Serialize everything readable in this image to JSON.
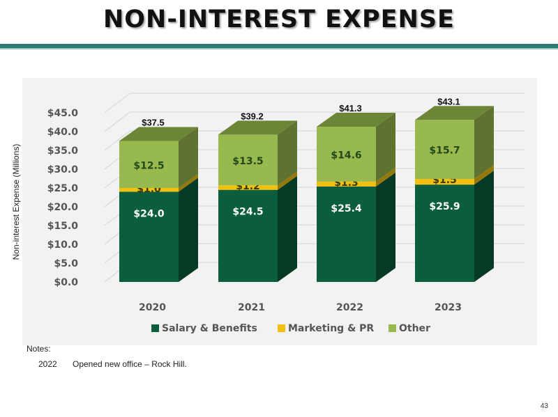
{
  "title": "NON-INTEREST EXPENSE",
  "notes": {
    "label": "Notes:",
    "items": [
      {
        "year": "2022",
        "text": "Opened new office – Rock Hill."
      }
    ]
  },
  "page_number": "43",
  "colors": {
    "salary": "#0b5e3c",
    "marketing": "#f2c10f",
    "other": "#97b94d",
    "rule": "#2a7a70"
  },
  "chart_data": {
    "type": "bar",
    "stacked": true,
    "ylabel": "Non-interest Expense (Millions)",
    "xlabel": "",
    "ylim": [
      0,
      45
    ],
    "yticks": [
      "$0.0",
      "$5.0",
      "$10.0",
      "$15.0",
      "$20.0",
      "$25.0",
      "$30.0",
      "$35.0",
      "$40.0",
      "$45.0"
    ],
    "categories": [
      "2020",
      "2021",
      "2022",
      "2023"
    ],
    "series": [
      {
        "name": "Salary & Benefits",
        "values": [
          24.0,
          24.5,
          25.4,
          25.9
        ],
        "labels": [
          "$24.0",
          "$24.5",
          "$25.4",
          "$25.9"
        ]
      },
      {
        "name": "Marketing & PR",
        "values": [
          1.0,
          1.2,
          1.3,
          1.5
        ],
        "labels": [
          "$1.0",
          "$1.2",
          "$1.3",
          "$1.5"
        ]
      },
      {
        "name": "Other",
        "values": [
          12.5,
          13.5,
          14.6,
          15.7
        ],
        "labels": [
          "$12.5",
          "$13.5",
          "$14.6",
          "$15.7"
        ]
      }
    ],
    "totals": [
      "$37.5",
      "$39.2",
      "$41.3",
      "$43.1"
    ],
    "legend_position": "bottom"
  }
}
